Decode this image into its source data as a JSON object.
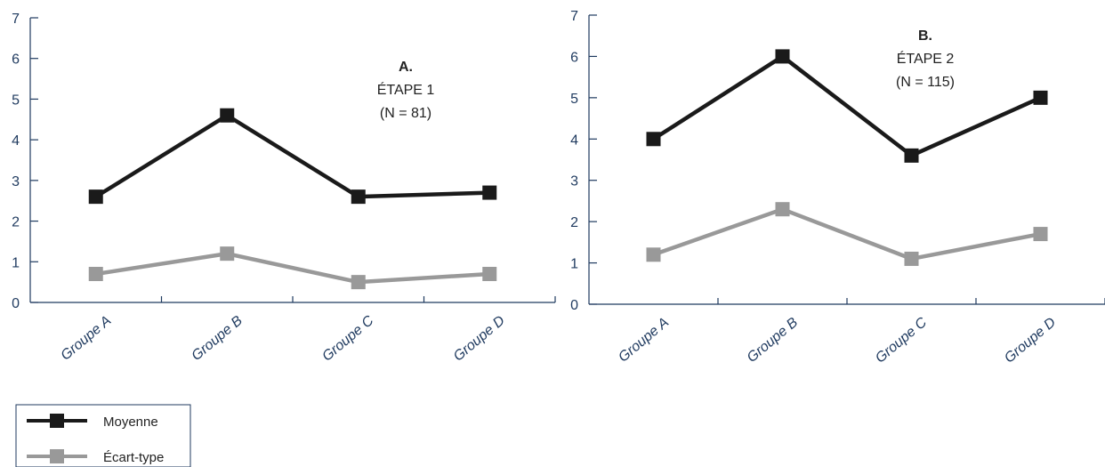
{
  "colors": {
    "moyenne": "#1a1a1a",
    "ecart_type": "#999999",
    "axis": "#1f3a5f"
  },
  "chart_data": [
    {
      "type": "line",
      "panel_label": "A.",
      "annotation_lines": [
        "ÉTAPE 1",
        "(N = 81)"
      ],
      "categories": [
        "Groupe A",
        "Groupe B",
        "Groupe C",
        "Groupe D"
      ],
      "ylim": [
        0,
        7
      ],
      "yticks": [
        0,
        1,
        2,
        3,
        4,
        5,
        6,
        7
      ],
      "series": [
        {
          "name": "Moyenne",
          "values": [
            2.6,
            4.6,
            2.6,
            2.7
          ]
        },
        {
          "name": "Écart-type",
          "values": [
            0.7,
            1.2,
            0.5,
            0.7
          ]
        }
      ]
    },
    {
      "type": "line",
      "panel_label": "B.",
      "annotation_lines": [
        "ÉTAPE 2",
        "(N = 115)"
      ],
      "categories": [
        "Groupe A",
        "Groupe B",
        "Groupe C",
        "Groupe D"
      ],
      "ylim": [
        0,
        7
      ],
      "yticks": [
        0,
        1,
        2,
        3,
        4,
        5,
        6,
        7
      ],
      "series": [
        {
          "name": "Moyenne",
          "values": [
            4.0,
            6.0,
            3.6,
            5.0
          ]
        },
        {
          "name": "Écart-type",
          "values": [
            1.2,
            2.3,
            1.1,
            1.7
          ]
        }
      ]
    }
  ],
  "legend": {
    "position": "bottom-left",
    "items": [
      {
        "label": "Moyenne",
        "color": "#1a1a1a"
      },
      {
        "label": "Écart-type",
        "color": "#999999"
      }
    ]
  }
}
